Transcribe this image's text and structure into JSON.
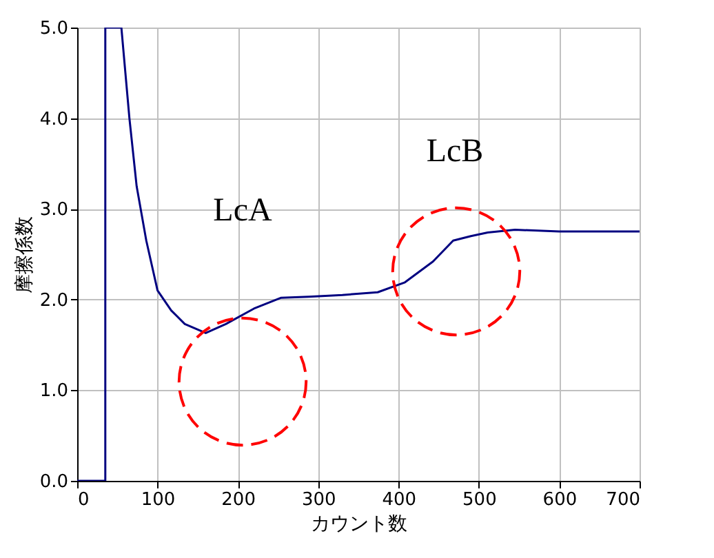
{
  "chart_data": {
    "type": "line",
    "xlabel": "カウント数",
    "ylabel": "摩擦係数",
    "x": [
      0,
      35,
      35,
      55,
      60,
      65,
      74,
      86,
      100,
      117,
      134,
      160,
      185,
      220,
      254,
      288,
      330,
      374,
      408,
      443,
      468,
      490,
      511,
      545,
      600,
      650,
      700
    ],
    "series": [
      {
        "color": "#000080",
        "values": [
          0,
          0,
          5.0,
          5.0,
          4.5,
          4.0,
          3.25,
          2.65,
          2.1,
          1.88,
          1.73,
          1.63,
          1.73,
          1.9,
          2.02,
          2.03,
          2.05,
          2.08,
          2.19,
          2.42,
          2.65,
          2.7,
          2.74,
          2.77,
          2.75,
          2.75,
          2.75
        ]
      }
    ],
    "xlim": [
      0,
      700
    ],
    "xticks": [
      0,
      100,
      200,
      300,
      400,
      500,
      600,
      700
    ],
    "ylim": [
      0,
      5
    ],
    "yticks": [
      {
        "value": 0,
        "label": "0.0"
      },
      {
        "value": 1,
        "label": "1.0"
      },
      {
        "value": 2,
        "label": "2.0"
      },
      {
        "value": 3,
        "label": "3.0"
      },
      {
        "value": 4,
        "label": "4.0"
      },
      {
        "value": 5,
        "label": "5.0"
      }
    ],
    "annotations": [
      "LcA",
      "LcB"
    ],
    "grid": true,
    "marker": "none",
    "line_style": "solid"
  }
}
